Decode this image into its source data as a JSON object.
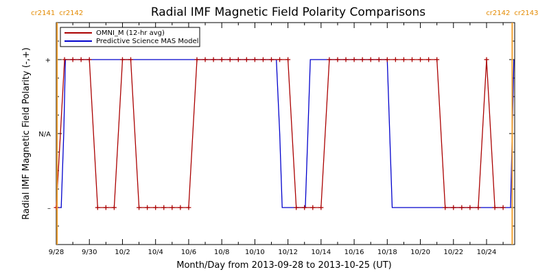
{
  "chart_data": {
    "type": "line",
    "title": "Radial IMF Magnetic Field Polarity Comparisons",
    "xlabel": "Month/Day from 2013-09-28 to 2013-10-25 (UT)",
    "ylabel": "Radial IMF Magnetic Field Polarity (-,+)",
    "y_categories": [
      "–",
      "N/A",
      "+"
    ],
    "y_tick_labels": [
      "+",
      "N/A",
      "–"
    ],
    "x_tick_labels": [
      "9/28",
      "9/30",
      "10/2",
      "10/4",
      "10/6",
      "10/8",
      "10/10",
      "10/12",
      "10/14",
      "10/16",
      "10/18",
      "10/20",
      "10/22",
      "10/24"
    ],
    "xlim_days": [
      0,
      27.7
    ],
    "ylim": [
      -1.5,
      1.5
    ],
    "legend": {
      "placement": "top-left"
    },
    "carrington_markers": [
      {
        "day": 0.05,
        "left": "cr2141",
        "right": "cr2142",
        "color": "#f0a030"
      },
      {
        "day": 27.55,
        "left": "cr2142",
        "right": "cr2143",
        "color": "#f0a030"
      }
    ],
    "series": [
      {
        "name": "OMNI_M (12-hr avg)",
        "color": "#aa0000",
        "marker": "plus",
        "points": [
          [
            0.0,
            -1
          ],
          [
            0.5,
            1
          ],
          [
            1.0,
            1
          ],
          [
            1.5,
            1
          ],
          [
            2.0,
            1
          ],
          [
            2.5,
            -1
          ],
          [
            3.0,
            -1
          ],
          [
            3.5,
            -1
          ],
          [
            4.0,
            1
          ],
          [
            4.5,
            1
          ],
          [
            5.0,
            -1
          ],
          [
            5.5,
            -1
          ],
          [
            6.0,
            -1
          ],
          [
            6.5,
            -1
          ],
          [
            7.0,
            -1
          ],
          [
            7.5,
            -1
          ],
          [
            8.0,
            -1
          ],
          [
            8.5,
            1
          ],
          [
            9.0,
            1
          ],
          [
            9.5,
            1
          ],
          [
            10.0,
            1
          ],
          [
            10.5,
            1
          ],
          [
            11.0,
            1
          ],
          [
            11.5,
            1
          ],
          [
            12.0,
            1
          ],
          [
            12.5,
            1
          ],
          [
            13.0,
            1
          ],
          [
            13.5,
            1
          ],
          [
            14.0,
            1
          ],
          [
            14.5,
            -1
          ],
          [
            15.0,
            -1
          ],
          [
            15.5,
            -1
          ],
          [
            16.0,
            -1
          ],
          [
            16.5,
            1
          ],
          [
            17.0,
            1
          ],
          [
            17.5,
            1
          ],
          [
            18.0,
            1
          ],
          [
            18.5,
            1
          ],
          [
            19.0,
            1
          ],
          [
            19.5,
            1
          ],
          [
            20.0,
            1
          ],
          [
            20.5,
            1
          ],
          [
            21.0,
            1
          ],
          [
            21.5,
            1
          ],
          [
            22.0,
            1
          ],
          [
            22.5,
            1
          ],
          [
            23.0,
            1
          ],
          [
            23.5,
            -1
          ],
          [
            24.0,
            -1
          ],
          [
            24.5,
            -1
          ],
          [
            25.0,
            -1
          ],
          [
            25.5,
            -1
          ],
          [
            26.0,
            1
          ],
          [
            26.5,
            -1
          ],
          [
            27.0,
            -1
          ]
        ]
      },
      {
        "name": "Predictive Science MAS Model",
        "color": "#0000cc",
        "marker": "none",
        "points": [
          [
            0.0,
            -1
          ],
          [
            0.3,
            -1
          ],
          [
            0.45,
            0
          ],
          [
            0.55,
            1
          ],
          [
            13.3,
            1
          ],
          [
            13.5,
            0
          ],
          [
            13.65,
            -1
          ],
          [
            15.05,
            -1
          ],
          [
            15.2,
            0
          ],
          [
            15.35,
            1
          ],
          [
            20.0,
            1
          ],
          [
            20.15,
            0
          ],
          [
            20.3,
            -1
          ],
          [
            27.45,
            -1
          ],
          [
            27.55,
            0
          ],
          [
            27.65,
            1
          ]
        ]
      }
    ]
  }
}
